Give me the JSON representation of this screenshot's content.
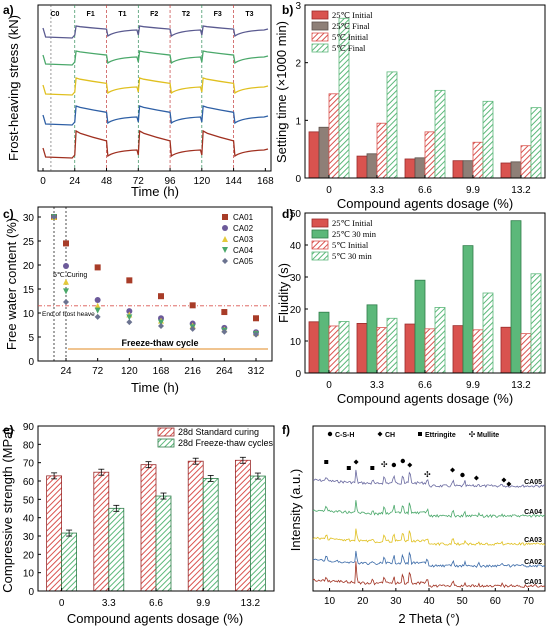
{
  "colors": {
    "red": "#d9534f",
    "green": "#5cb87a",
    "grey": "#8e7f77",
    "gridpink": "#f4c7c7"
  },
  "chart_data": [
    {
      "panel": "a)",
      "type": "line",
      "xlabel": "Time (h)",
      "ylabel": "Frost-heaving stress (kN)",
      "xlim": [
        0,
        170
      ],
      "xticks": [
        "0",
        "24",
        "48",
        "72",
        "96",
        "120",
        "144",
        "168"
      ],
      "phases": [
        "C0",
        "F1",
        "T1",
        "F2",
        "T2",
        "F3",
        "T3"
      ],
      "series": [
        {
          "name": "CA01",
          "color": "#a03020"
        },
        {
          "name": "CA02",
          "color": "#2e5fa5"
        },
        {
          "name": "CA03",
          "color": "#e0c020"
        },
        {
          "name": "CA04",
          "color": "#4aa86a"
        },
        {
          "name": "CA05",
          "color": "#5a5a90"
        }
      ]
    },
    {
      "panel": "b)",
      "type": "bar",
      "xlabel": "Compound agents dosage (%)",
      "ylabel": "Setting time (×1000 min)",
      "ylim": [
        0,
        3
      ],
      "yticks": [
        "0",
        "1",
        "2",
        "3"
      ],
      "categories": [
        "0",
        "3.3",
        "6.6",
        "9.9",
        "13.2"
      ],
      "series": [
        {
          "name": "25℃ Initial",
          "values": [
            0.8,
            0.38,
            0.33,
            0.3,
            0.26
          ]
        },
        {
          "name": "25℃ Final",
          "values": [
            0.88,
            0.42,
            0.35,
            0.3,
            0.28
          ]
        },
        {
          "name": "5℃ Initial",
          "values": [
            1.46,
            0.95,
            0.8,
            0.62,
            0.56
          ]
        },
        {
          "name": "5℃ Final",
          "values": [
            2.77,
            1.84,
            1.52,
            1.33,
            1.22
          ]
        }
      ]
    },
    {
      "panel": "c)",
      "type": "scatter",
      "xlabel": "Time (h)",
      "ylabel": "Free water content (%)",
      "ylim": [
        0,
        30
      ],
      "yticks": [
        "0",
        "5",
        "10",
        "15",
        "20",
        "25",
        "30"
      ],
      "xticks": [
        "24",
        "72",
        "120",
        "168",
        "216",
        "264",
        "312"
      ],
      "annotations": {
        "curing": "5℃ Curing",
        "frost": "End of frost heave",
        "cycle": "Freeze-thaw cycle"
      },
      "x": [
        6,
        24,
        72,
        120,
        168,
        216,
        264,
        312
      ],
      "series": [
        {
          "name": "CA01",
          "color": "#a83c28",
          "values": [
            30,
            24.5,
            19.5,
            16.8,
            13.5,
            11.6,
            10.2,
            8.9
          ]
        },
        {
          "name": "CA02",
          "color": "#6c5a9a",
          "values": [
            30,
            19.8,
            12.7,
            10.4,
            8.9,
            7.8,
            6.9,
            6
          ]
        },
        {
          "name": "CA03",
          "color": "#e4c93a",
          "values": [
            30,
            16.5,
            11.5,
            9.7,
            8.4,
            7.4,
            6.6,
            5.8
          ]
        },
        {
          "name": "CA04",
          "color": "#4aa86a",
          "values": [
            30,
            14.5,
            10.5,
            9.1,
            8,
            7,
            6.3,
            5.6
          ]
        },
        {
          "name": "CA05",
          "color": "#6b7390",
          "values": [
            30,
            12.3,
            9.2,
            8.1,
            7.3,
            6.7,
            6.1,
            5.5
          ]
        }
      ]
    },
    {
      "panel": "d)",
      "type": "bar",
      "xlabel": "Compound agents dosage (%)",
      "ylabel": "Fluidity (s)",
      "ylim": [
        0,
        50
      ],
      "yticks": [
        "0",
        "10",
        "20",
        "30",
        "40",
        "50"
      ],
      "categories": [
        "0",
        "3.3",
        "6.6",
        "9.9",
        "13.2"
      ],
      "series": [
        {
          "name": "25℃ Initial",
          "values": [
            16,
            15.5,
            15.3,
            14.8,
            14.3
          ]
        },
        {
          "name": "25℃ 30 min",
          "values": [
            19,
            21.3,
            29,
            39.8,
            47.6
          ]
        },
        {
          "name": "5℃ Initial",
          "values": [
            14.7,
            14.2,
            13.8,
            13.5,
            12.3
          ]
        },
        {
          "name": "5℃ 30 min",
          "values": [
            16.1,
            17.1,
            20.5,
            25,
            31
          ]
        }
      ]
    },
    {
      "panel": "e)",
      "type": "bar",
      "xlabel": "Compound agents dosage (%)",
      "ylabel": "Compressive strength (MPa)",
      "ylim": [
        0,
        90
      ],
      "yticks": [
        "0",
        "10",
        "20",
        "30",
        "40",
        "50",
        "60",
        "70",
        "80",
        "90"
      ],
      "categories": [
        "0",
        "3.3",
        "6.6",
        "9.9",
        "13.2"
      ],
      "series": [
        {
          "name": "28d Standard curing",
          "values": [
            62.8,
            64.8,
            68.9,
            70.8,
            71.3
          ]
        },
        {
          "name": "28d Freeze-thaw cycles",
          "values": [
            31.6,
            45.1,
            51.8,
            61.4,
            62.7
          ]
        }
      ]
    },
    {
      "panel": "f)",
      "type": "line",
      "xlabel": "2 Theta (°)",
      "ylabel": "Intensity (a.u.)",
      "xlim": [
        5,
        75
      ],
      "xticks": [
        "10",
        "20",
        "30",
        "40",
        "50",
        "60",
        "70"
      ],
      "legend": [
        "C-S-H",
        "CH",
        "Ettringite",
        "Mullite"
      ],
      "series": [
        {
          "name": "CA05",
          "color": "#6a6aa0"
        },
        {
          "name": "CA04",
          "color": "#4aa86a"
        },
        {
          "name": "CA03",
          "color": "#e0c020"
        },
        {
          "name": "CA02",
          "color": "#3a6aa8"
        },
        {
          "name": "CA01",
          "color": "#a03020"
        }
      ]
    }
  ]
}
